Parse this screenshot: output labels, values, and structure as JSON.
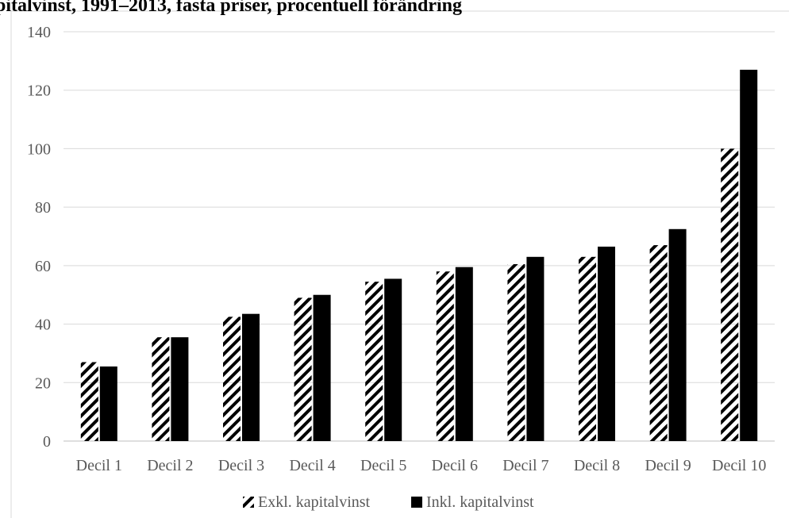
{
  "chart_data": {
    "type": "bar",
    "title": "pitalvinst, 1991–2013, fasta priser, procentuell förändring",
    "categories": [
      "Decil 1",
      "Decil 2",
      "Decil 3",
      "Decil 4",
      "Decil 5",
      "Decil 6",
      "Decil 7",
      "Decil 8",
      "Decil 9",
      "Decil 10"
    ],
    "series": [
      {
        "name": "Exkl. kapitalvinst",
        "pattern": "diagonal-hatch",
        "color": "#000000",
        "values": [
          27,
          35.5,
          42.5,
          49,
          54.5,
          58,
          60.5,
          63,
          67,
          100
        ]
      },
      {
        "name": "Inkl. kapitalvinst",
        "pattern": "solid",
        "color": "#000000",
        "values": [
          25.5,
          35.5,
          43.5,
          50,
          55.5,
          59.5,
          63,
          66.5,
          72.5,
          127
        ]
      }
    ],
    "ylim": [
      0,
      140
    ],
    "yticks": [
      0,
      20,
      40,
      60,
      80,
      100,
      120,
      140
    ],
    "grid": true,
    "legend": "bottom",
    "xlabel": "",
    "ylabel": ""
  }
}
